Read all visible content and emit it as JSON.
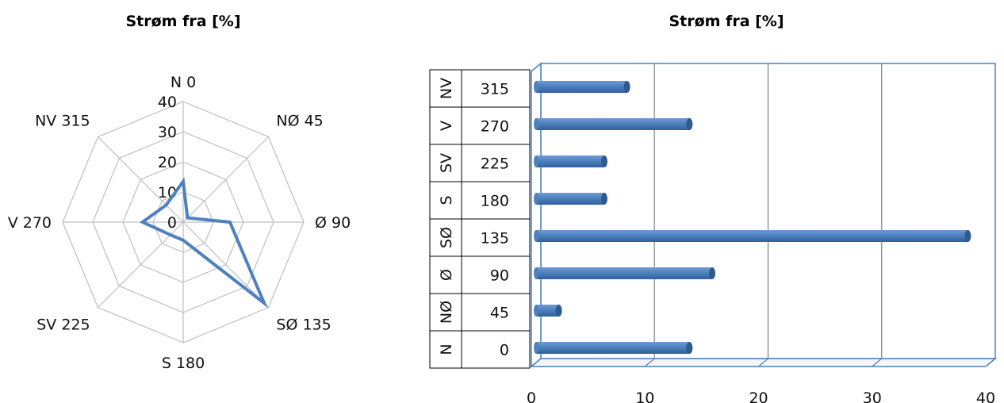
{
  "chart_data": [
    {
      "type": "radar",
      "title": "Strøm fra [%]",
      "categories": [
        "N 0",
        "NØ 45",
        "Ø 90",
        "SØ 135",
        "S 180",
        "SV 225",
        "V 270",
        "NV 315"
      ],
      "series": [
        {
          "values": [
            13.5,
            2,
            15.5,
            38,
            6,
            6,
            13.5,
            8
          ]
        }
      ],
      "r_ticks": [
        "0",
        "10",
        "20",
        "30",
        "40"
      ],
      "rlim": [
        0,
        40
      ],
      "grid": true,
      "legend": "none",
      "colors": {
        "series": "#4F81BD",
        "grid": "#BFBFBF"
      }
    },
    {
      "type": "bar",
      "orientation": "horizontal",
      "title": "Strøm fra [%]",
      "rows": [
        {
          "dir": "N",
          "deg": "0",
          "value": 13.5
        },
        {
          "dir": "NØ",
          "deg": "45",
          "value": 2
        },
        {
          "dir": "Ø",
          "deg": "90",
          "value": 15.5
        },
        {
          "dir": "SØ",
          "deg": "135",
          "value": 38
        },
        {
          "dir": "S",
          "deg": "180",
          "value": 6
        },
        {
          "dir": "SV",
          "deg": "225",
          "value": 6
        },
        {
          "dir": "V",
          "deg": "270",
          "value": 13.5
        },
        {
          "dir": "NV",
          "deg": "315",
          "value": 8
        }
      ],
      "x_ticks": [
        "0",
        "10",
        "20",
        "30",
        "40"
      ],
      "xlim": [
        0,
        40
      ],
      "grid": true,
      "legend": "none",
      "colors": {
        "bar": "#4F81BD",
        "bar_dark": "#2E5A8E",
        "grid": "#808080",
        "frame": "#4F81BD"
      }
    }
  ]
}
